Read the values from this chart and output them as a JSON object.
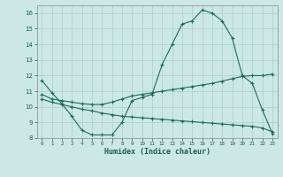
{
  "xlabel": "Humidex (Indice chaleur)",
  "xlim": [
    -0.5,
    23.5
  ],
  "ylim": [
    8,
    16.5
  ],
  "yticks": [
    8,
    9,
    10,
    11,
    12,
    13,
    14,
    15,
    16
  ],
  "xticks": [
    0,
    1,
    2,
    3,
    4,
    5,
    6,
    7,
    8,
    9,
    10,
    11,
    12,
    13,
    14,
    15,
    16,
    17,
    18,
    19,
    20,
    21,
    22,
    23
  ],
  "bg_color": "#cce8e4",
  "grid_color": "#aacfca",
  "line_color": "#1a6b5e",
  "line1_x": [
    0,
    1,
    2,
    3,
    4,
    5,
    6,
    7,
    8,
    9,
    10,
    11,
    12,
    13,
    14,
    15,
    16,
    17,
    18,
    19,
    20,
    21,
    22,
    23
  ],
  "line1_y": [
    11.7,
    10.9,
    10.2,
    9.4,
    8.5,
    8.2,
    8.2,
    8.2,
    9.0,
    10.4,
    10.6,
    10.8,
    12.7,
    14.0,
    15.3,
    15.5,
    16.2,
    16.0,
    15.5,
    14.4,
    12.0,
    11.5,
    9.8,
    8.3
  ],
  "line2_x": [
    0,
    1,
    2,
    3,
    4,
    5,
    6,
    7,
    8,
    9,
    10,
    11,
    12,
    13,
    14,
    15,
    16,
    17,
    18,
    19,
    20,
    21,
    22,
    23
  ],
  "line2_y": [
    10.8,
    10.5,
    10.4,
    10.3,
    10.2,
    10.15,
    10.15,
    10.3,
    10.5,
    10.7,
    10.8,
    10.9,
    11.0,
    11.1,
    11.2,
    11.3,
    11.4,
    11.5,
    11.65,
    11.8,
    11.95,
    12.0,
    12.0,
    12.1
  ],
  "line3_x": [
    0,
    1,
    2,
    3,
    4,
    5,
    6,
    7,
    8,
    9,
    10,
    11,
    12,
    13,
    14,
    15,
    16,
    17,
    18,
    19,
    20,
    21,
    22,
    23
  ],
  "line3_y": [
    10.5,
    10.3,
    10.15,
    10.0,
    9.85,
    9.75,
    9.6,
    9.5,
    9.4,
    9.35,
    9.3,
    9.25,
    9.2,
    9.15,
    9.1,
    9.05,
    9.0,
    8.95,
    8.9,
    8.85,
    8.8,
    8.75,
    8.65,
    8.4
  ]
}
